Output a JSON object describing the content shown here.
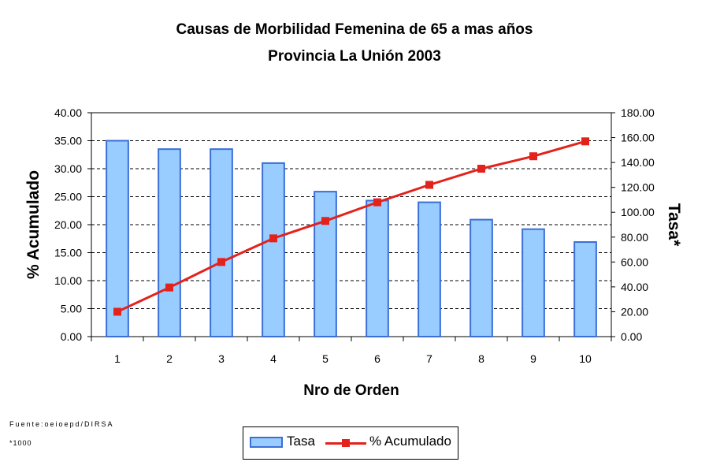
{
  "chart_data": {
    "type": "bar+line",
    "title": "Causas de Morbilidad Femenina de 65 a mas años",
    "subtitle": "Provincia La Unión 2003",
    "xlabel": "Nro de Orden",
    "ylabel_left": "% Acumulado",
    "ylabel_right": "Tasa*",
    "categories": [
      "1",
      "2",
      "3",
      "4",
      "5",
      "6",
      "7",
      "8",
      "9",
      "10"
    ],
    "left_axis": {
      "range": [
        0,
        40
      ],
      "ticks": [
        "0.00",
        "5.00",
        "10.00",
        "15.00",
        "20.00",
        "25.00",
        "30.00",
        "35.00",
        "40.00"
      ]
    },
    "right_axis": {
      "range": [
        0,
        180
      ],
      "ticks": [
        "0.00",
        "20.00",
        "40.00",
        "60.00",
        "80.00",
        "100.00",
        "120.00",
        "140.00",
        "160.00",
        "180.00"
      ]
    },
    "grid": "horizontal dashed",
    "legend_position": "bottom",
    "series": [
      {
        "name": "Tasa",
        "type": "bar",
        "axis": "left",
        "color": "#99ccff",
        "edge_color": "#3a6fd8",
        "values": [
          35.0,
          33.5,
          33.5,
          31.0,
          25.9,
          24.3,
          24.0,
          20.9,
          19.2,
          16.9
        ]
      },
      {
        "name": "% Acumulado",
        "type": "line",
        "axis": "right",
        "color": "#e3221c",
        "values": [
          20.0,
          39.5,
          60.0,
          79.0,
          93.0,
          108.0,
          122.0,
          135.0,
          145.0,
          157.0
        ]
      }
    ]
  },
  "footnotes": {
    "source": "Fuente:oeioepd/DIRSA",
    "note": "*1000"
  }
}
